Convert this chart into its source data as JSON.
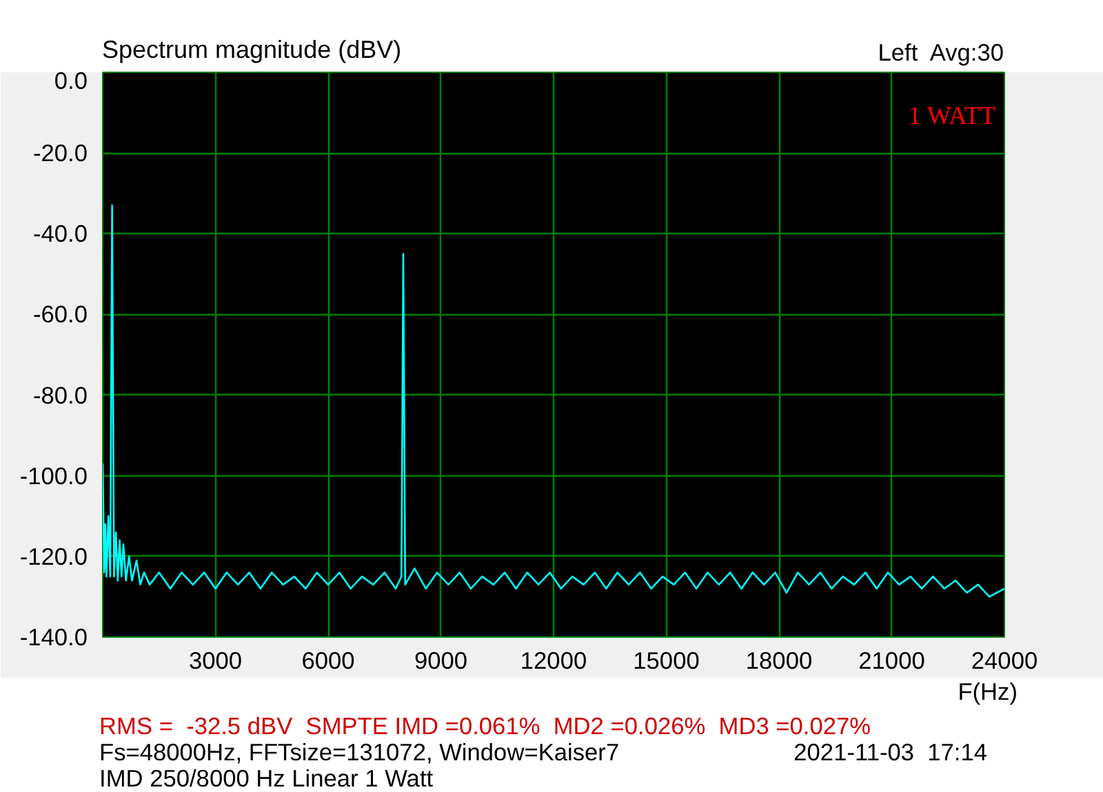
{
  "chart_data": {
    "type": "line",
    "title": "Spectrum magnitude (dBV)",
    "xlabel": "F(Hz)",
    "annotations": [
      "Left  Avg:30",
      "1 WATT",
      "RMS =  -32.5 dBV  SMPTE IMD =0.061%  MD2 =0.026%  MD3 =0.027%",
      "Fs=48000Hz, FFTsize=131072, Window=Kaiser7",
      "2021-11-03  17:14",
      "IMD 250/8000 Hz Linear 1 Watt"
    ],
    "x": [
      0,
      40,
      70,
      100,
      150,
      200,
      250,
      300,
      350,
      400,
      450,
      500,
      550,
      620,
      700,
      780,
      900,
      1000,
      1100,
      1250,
      1500,
      1800,
      2100,
      2400,
      2700,
      3000,
      3300,
      3600,
      3900,
      4200,
      4500,
      4800,
      5100,
      5400,
      5700,
      6000,
      6300,
      6600,
      6900,
      7200,
      7500,
      7800,
      7950,
      8000,
      8050,
      8300,
      8600,
      8900,
      9200,
      9500,
      9800,
      10100,
      10400,
      10700,
      11000,
      11300,
      11600,
      11900,
      12200,
      12500,
      12800,
      13100,
      13400,
      13700,
      14000,
      14300,
      14600,
      14900,
      15200,
      15500,
      15800,
      16100,
      16400,
      16700,
      17000,
      17300,
      17600,
      17900,
      18200,
      18500,
      18800,
      19100,
      19400,
      19700,
      20000,
      20300,
      20600,
      20900,
      21200,
      21500,
      21800,
      22100,
      22400,
      22700,
      23000,
      23300,
      23600,
      24000
    ],
    "series": [
      {
        "color": "#00ffff",
        "values": [
          -97,
          -124,
          -112,
          -125,
          -110,
          -125,
          -33,
          -125,
          -114,
          -126,
          -116,
          -125,
          -117,
          -126,
          -120,
          -126,
          -121,
          -127,
          -124,
          -127,
          -124,
          -128,
          -124,
          -127,
          -124,
          -128,
          -124,
          -127,
          -124,
          -128,
          -124,
          -127,
          -125,
          -128,
          -124,
          -127,
          -124,
          -128,
          -125,
          -127,
          -124,
          -128,
          -125,
          -45,
          -127,
          -123,
          -128,
          -124,
          -127,
          -124,
          -128,
          -125,
          -127,
          -124,
          -128,
          -124,
          -127,
          -124,
          -128,
          -125,
          -127,
          -124,
          -128,
          -124,
          -127,
          -124,
          -128,
          -125,
          -127,
          -124,
          -128,
          -124,
          -127,
          -124,
          -128,
          -124,
          -127,
          -124,
          -129,
          -124,
          -127,
          -124,
          -128,
          -125,
          -127,
          -124,
          -128,
          -124,
          -127,
          -125,
          -128,
          -125,
          -128,
          -126,
          -129,
          -127,
          -130,
          -128
        ]
      }
    ],
    "xlim": [
      0,
      24000
    ],
    "ylim": [
      -140,
      0
    ],
    "xticks": [
      3000,
      6000,
      9000,
      12000,
      15000,
      18000,
      21000,
      24000
    ],
    "yticks": [
      {
        "value": 0,
        "label": "0.0"
      },
      {
        "value": -20,
        "label": "-20.0"
      },
      {
        "value": -40,
        "label": "-40.0"
      },
      {
        "value": -60,
        "label": "-60.0"
      },
      {
        "value": -80,
        "label": "-80.0"
      },
      {
        "value": -100,
        "label": "-100.0"
      },
      {
        "value": -120,
        "label": "-120.0"
      },
      {
        "value": -140,
        "label": "-140.0"
      }
    ],
    "grid": true,
    "marker": "none",
    "line_style": "solid"
  }
}
